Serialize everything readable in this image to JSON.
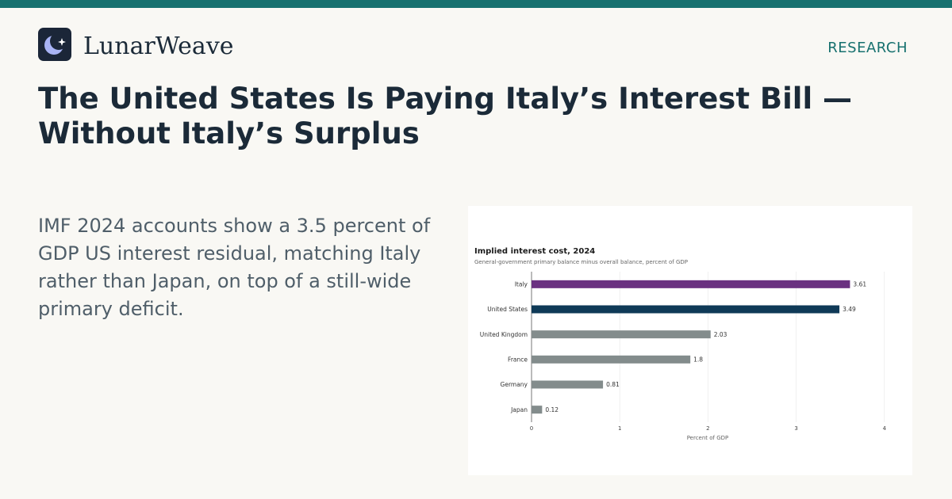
{
  "brand": {
    "name": "LunarWeave",
    "logo_icon": "crescent-moon-star-icon"
  },
  "header": {
    "section": "RESEARCH"
  },
  "article": {
    "headline": "The United States Is Paying Italy’s Interest Bill — Without Italy’s Surplus",
    "summary": "IMF 2024 accounts show a 3.5 percent of GDP US interest residual, matching Italy rather than Japan, on top of a still-wide primary deficit."
  },
  "colors": {
    "accent": "#17716f",
    "italy": "#6a3180",
    "united_states": "#0f3a57",
    "other": "#838c8c"
  },
  "chart_data": {
    "type": "bar",
    "orientation": "horizontal",
    "title": "Implied interest cost, 2024",
    "subtitle": "General-government primary balance minus overall balance, percent of GDP",
    "xlabel": "Percent of GDP",
    "ylabel": "",
    "xlim": [
      0,
      4
    ],
    "ticks": [
      0,
      1,
      2,
      3,
      4
    ],
    "grid": true,
    "categories": [
      "Italy",
      "United States",
      "United Kingdom",
      "France",
      "Germany",
      "Japan"
    ],
    "values": [
      3.61,
      3.49,
      2.03,
      1.8,
      0.81,
      0.12
    ],
    "bar_colors": [
      "#6a3180",
      "#0f3a57",
      "#838c8c",
      "#838c8c",
      "#838c8c",
      "#838c8c"
    ]
  }
}
